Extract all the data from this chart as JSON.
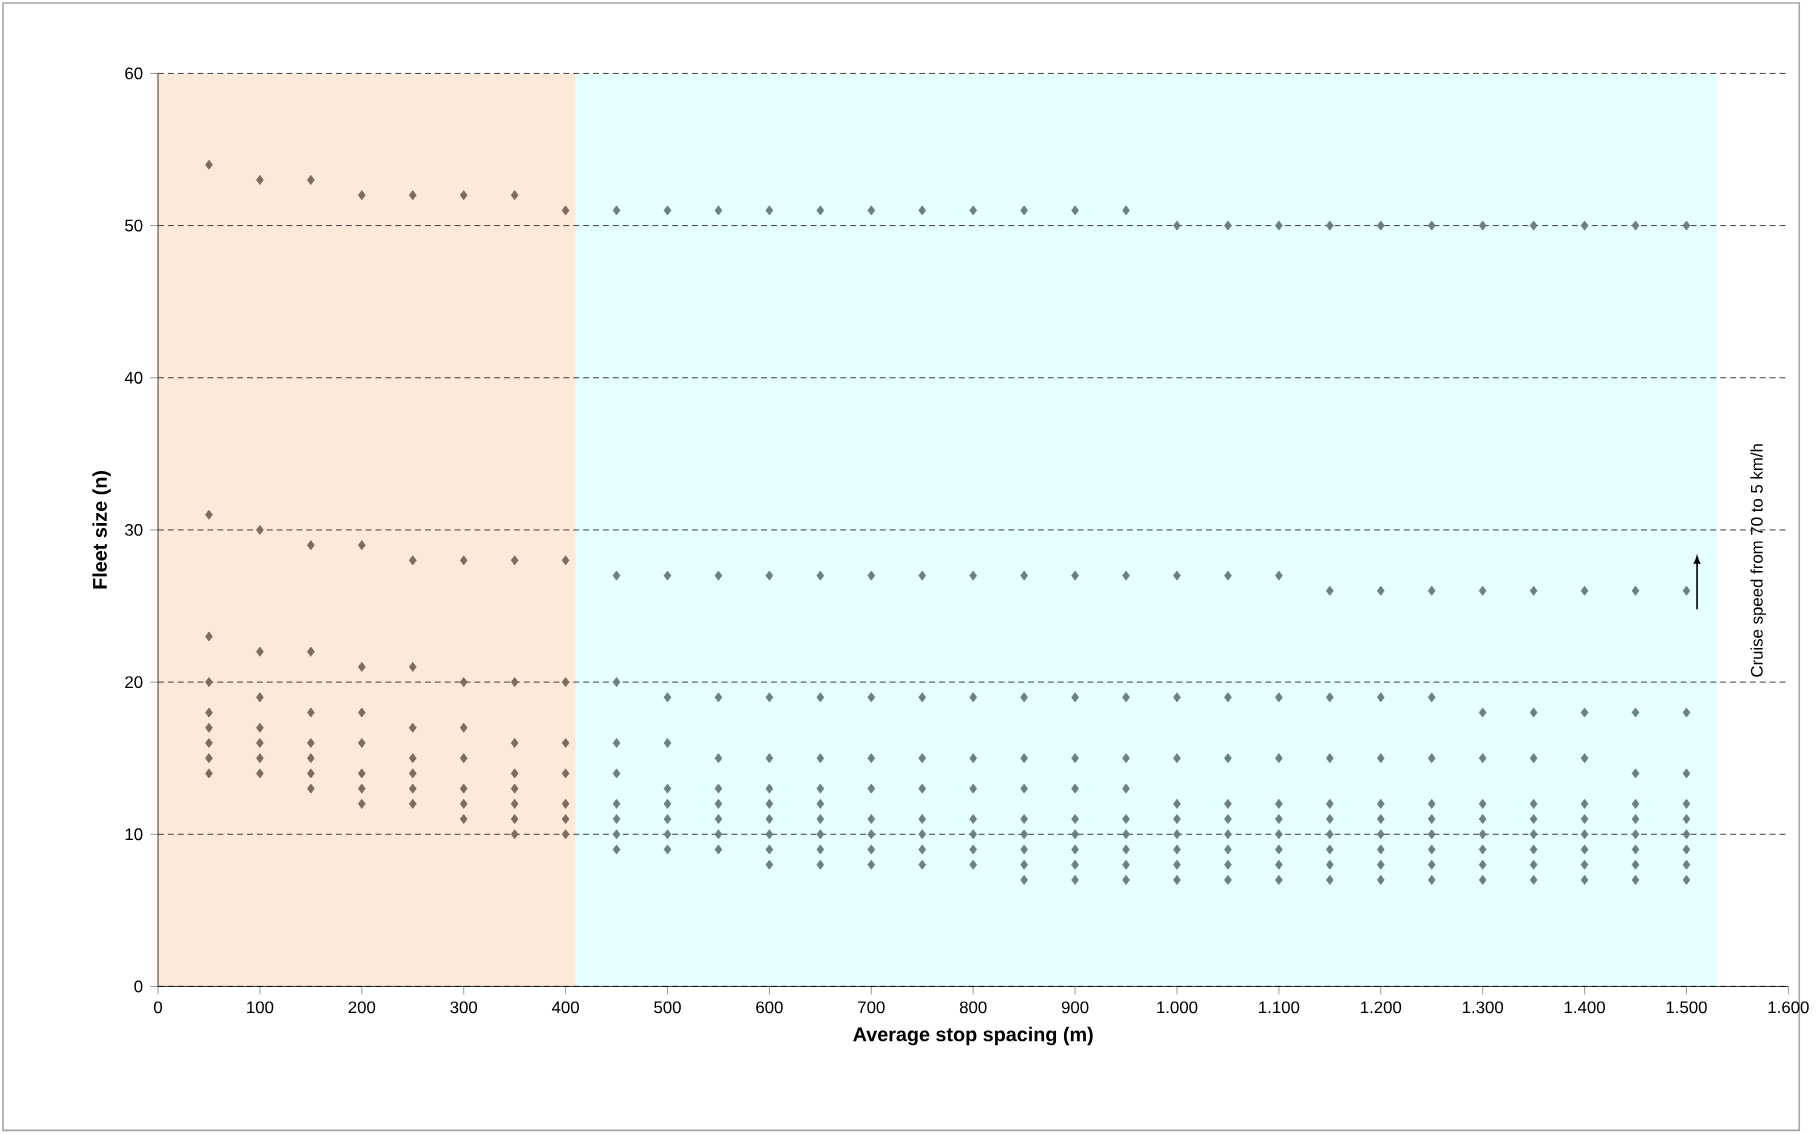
{
  "chart_data": {
    "type": "scatter",
    "xlabel": "Average stop spacing (m)",
    "ylabel": "Fleet size (n)",
    "xlim": [
      0,
      1600
    ],
    "ylim": [
      0,
      60
    ],
    "xticks": [
      0,
      100,
      200,
      300,
      400,
      500,
      600,
      700,
      800,
      900,
      {
        "value": 1000,
        "label": "1.000"
      },
      {
        "value": 1100,
        "label": "1.100"
      },
      {
        "value": 1200,
        "label": "1.200"
      },
      {
        "value": 1300,
        "label": "1.300"
      },
      {
        "value": 1400,
        "label": "1.400"
      },
      {
        "value": 1500,
        "label": "1.500"
      },
      {
        "value": 1600,
        "label": "1.600"
      }
    ],
    "yticks": [
      0,
      10,
      20,
      30,
      40,
      50,
      60
    ],
    "grid": "y",
    "marker": "diamond",
    "bands": [
      {
        "axis": "x",
        "from": 0,
        "to": 410,
        "color": "#fde9d9"
      },
      {
        "axis": "x",
        "from": 410,
        "to": 1530,
        "color": "#e6ffff"
      }
    ],
    "annotations": [
      "Cruise speed from 70 to 5 km/h"
    ],
    "series": [
      {
        "color": "#7f6b5c",
        "x": [
          50,
          50,
          50,
          50,
          50,
          50,
          50,
          50,
          50,
          100,
          100,
          100,
          100,
          100,
          100,
          100,
          100,
          150,
          150,
          150,
          150,
          150,
          150,
          150,
          150,
          200,
          200,
          200,
          200,
          200,
          200,
          200,
          200,
          250,
          250,
          250,
          250,
          250,
          250,
          250,
          250,
          300,
          300,
          300,
          300,
          300,
          300,
          300,
          300,
          350,
          350,
          350,
          350,
          350,
          350,
          350,
          350,
          350,
          400,
          400,
          400,
          400,
          400,
          400,
          400,
          400
        ],
        "values": [
          54,
          31,
          23,
          20,
          18,
          17,
          16,
          15,
          14,
          53,
          30,
          22,
          19,
          17,
          16,
          15,
          14,
          53,
          29,
          22,
          18,
          16,
          15,
          14,
          13,
          52,
          29,
          21,
          18,
          16,
          14,
          13,
          12,
          52,
          28,
          21,
          17,
          15,
          14,
          13,
          12,
          52,
          28,
          20,
          17,
          15,
          13,
          12,
          11,
          52,
          28,
          20,
          16,
          14,
          13,
          12,
          11,
          10,
          51,
          28,
          20,
          16,
          14,
          12,
          11,
          10
        ]
      },
      {
        "color": "#6e7f7f",
        "x": [
          450,
          450,
          450,
          450,
          450,
          450,
          450,
          450,
          450,
          500,
          500,
          500,
          500,
          500,
          500,
          500,
          500,
          500,
          550,
          550,
          550,
          550,
          550,
          550,
          550,
          550,
          550,
          600,
          600,
          600,
          600,
          600,
          600,
          600,
          600,
          600,
          600,
          650,
          650,
          650,
          650,
          650,
          650,
          650,
          650,
          650,
          650,
          700,
          700,
          700,
          700,
          700,
          700,
          700,
          700,
          700,
          750,
          750,
          750,
          750,
          750,
          750,
          750,
          750,
          750,
          800,
          800,
          800,
          800,
          800,
          800,
          800,
          800,
          800,
          850,
          850,
          850,
          850,
          850,
          850,
          850,
          850,
          850,
          850,
          900,
          900,
          900,
          900,
          900,
          900,
          900,
          900,
          900,
          900,
          950,
          950,
          950,
          950,
          950,
          950,
          950,
          950,
          950,
          950,
          1000,
          1000,
          1000,
          1000,
          1000,
          1000,
          1000,
          1000,
          1000,
          1000,
          1050,
          1050,
          1050,
          1050,
          1050,
          1050,
          1050,
          1050,
          1050,
          1050,
          1100,
          1100,
          1100,
          1100,
          1100,
          1100,
          1100,
          1100,
          1100,
          1100,
          1150,
          1150,
          1150,
          1150,
          1150,
          1150,
          1150,
          1150,
          1150,
          1150,
          1200,
          1200,
          1200,
          1200,
          1200,
          1200,
          1200,
          1200,
          1200,
          1200,
          1250,
          1250,
          1250,
          1250,
          1250,
          1250,
          1250,
          1250,
          1250,
          1250,
          1300,
          1300,
          1300,
          1300,
          1300,
          1300,
          1300,
          1300,
          1300,
          1300,
          1350,
          1350,
          1350,
          1350,
          1350,
          1350,
          1350,
          1350,
          1350,
          1350,
          1400,
          1400,
          1400,
          1400,
          1400,
          1400,
          1400,
          1400,
          1400,
          1400,
          1450,
          1450,
          1450,
          1450,
          1450,
          1450,
          1450,
          1450,
          1450,
          1450,
          1500,
          1500,
          1500,
          1500,
          1500,
          1500,
          1500,
          1500,
          1500,
          1500
        ],
        "values": [
          51,
          27,
          20,
          16,
          14,
          12,
          11,
          10,
          9,
          51,
          27,
          19,
          16,
          13,
          12,
          11,
          10,
          9,
          51,
          27,
          19,
          15,
          13,
          12,
          11,
          10,
          9,
          51,
          27,
          19,
          15,
          13,
          12,
          11,
          10,
          9,
          8,
          51,
          27,
          19,
          15,
          13,
          12,
          11,
          10,
          9,
          8,
          51,
          27,
          19,
          15,
          13,
          11,
          10,
          9,
          8,
          51,
          27,
          19,
          15,
          13,
          11,
          10,
          9,
          8,
          51,
          27,
          19,
          15,
          13,
          11,
          10,
          9,
          8,
          51,
          27,
          19,
          15,
          13,
          11,
          10,
          9,
          8,
          7,
          51,
          27,
          19,
          15,
          13,
          11,
          10,
          9,
          8,
          7,
          51,
          27,
          19,
          15,
          13,
          11,
          10,
          9,
          8,
          7,
          50,
          27,
          19,
          15,
          12,
          11,
          10,
          9,
          8,
          7,
          50,
          27,
          19,
          15,
          12,
          11,
          10,
          9,
          8,
          7,
          50,
          27,
          19,
          15,
          12,
          11,
          10,
          9,
          8,
          7,
          50,
          26,
          19,
          15,
          12,
          11,
          10,
          9,
          8,
          7,
          50,
          26,
          19,
          15,
          12,
          11,
          10,
          9,
          8,
          7,
          50,
          26,
          19,
          15,
          12,
          11,
          10,
          9,
          8,
          7,
          50,
          26,
          18,
          15,
          12,
          11,
          10,
          9,
          8,
          7,
          50,
          26,
          18,
          15,
          12,
          11,
          10,
          9,
          8,
          7,
          50,
          26,
          18,
          15,
          12,
          11,
          10,
          9,
          8,
          7,
          50,
          26,
          18,
          14,
          12,
          11,
          10,
          9,
          8,
          7,
          50,
          26,
          18,
          14,
          12,
          11,
          10,
          9,
          8,
          7
        ]
      }
    ]
  }
}
